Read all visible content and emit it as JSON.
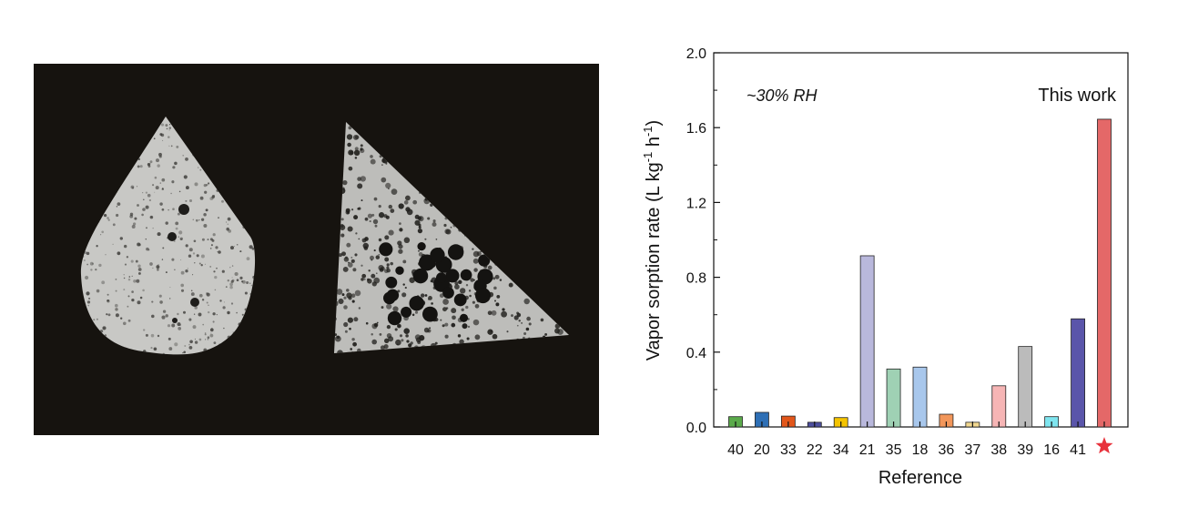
{
  "photo": {
    "shapes": [
      "teardrop-porous-sample",
      "triangle-porous-sample"
    ],
    "colors": {
      "background": "#16130f",
      "sample": "#c8c8c5",
      "pores": "#2b2a27"
    }
  },
  "chart_data": {
    "type": "bar",
    "xlabel": "Reference",
    "ylabel_parts": {
      "main": "Vapor sorption rate (L kg",
      "sup1": "-1",
      "mid": " h",
      "sup2": "-1",
      "end": ")"
    },
    "ylim": [
      0,
      2.0
    ],
    "yticks": [
      "0.0",
      "0.4",
      "0.8",
      "1.2",
      "1.6",
      "2.0"
    ],
    "ytick_values": [
      0,
      0.4,
      0.8,
      1.2,
      1.6,
      2.0
    ],
    "categories": [
      "40",
      "20",
      "33",
      "22",
      "34",
      "21",
      "35",
      "18",
      "36",
      "37",
      "38",
      "39",
      "16",
      "41",
      "star"
    ],
    "category_labels": [
      "40",
      "20",
      "33",
      "22",
      "34",
      "21",
      "35",
      "18",
      "36",
      "37",
      "38",
      "39",
      "16",
      "41",
      ""
    ],
    "values": [
      0.055,
      0.078,
      0.058,
      0.025,
      0.05,
      0.915,
      0.31,
      0.32,
      0.068,
      0.025,
      0.22,
      0.43,
      0.055,
      0.578,
      1.645
    ],
    "colors": [
      "#5aaa4a",
      "#2e6fb5",
      "#e2561a",
      "#4e4f9f",
      "#f5c400",
      "#b9b8dc",
      "#9fd1b4",
      "#a8c7ec",
      "#f2965a",
      "#f2d890",
      "#f6b5b5",
      "#bbbbbb",
      "#7fe5ef",
      "#5a55aa",
      "#e46868"
    ],
    "last_category_marker": "star-icon",
    "marker_color": "#e8323c",
    "annotations": {
      "condition": "~30% RH",
      "highlight": "This work"
    },
    "grid": false
  }
}
